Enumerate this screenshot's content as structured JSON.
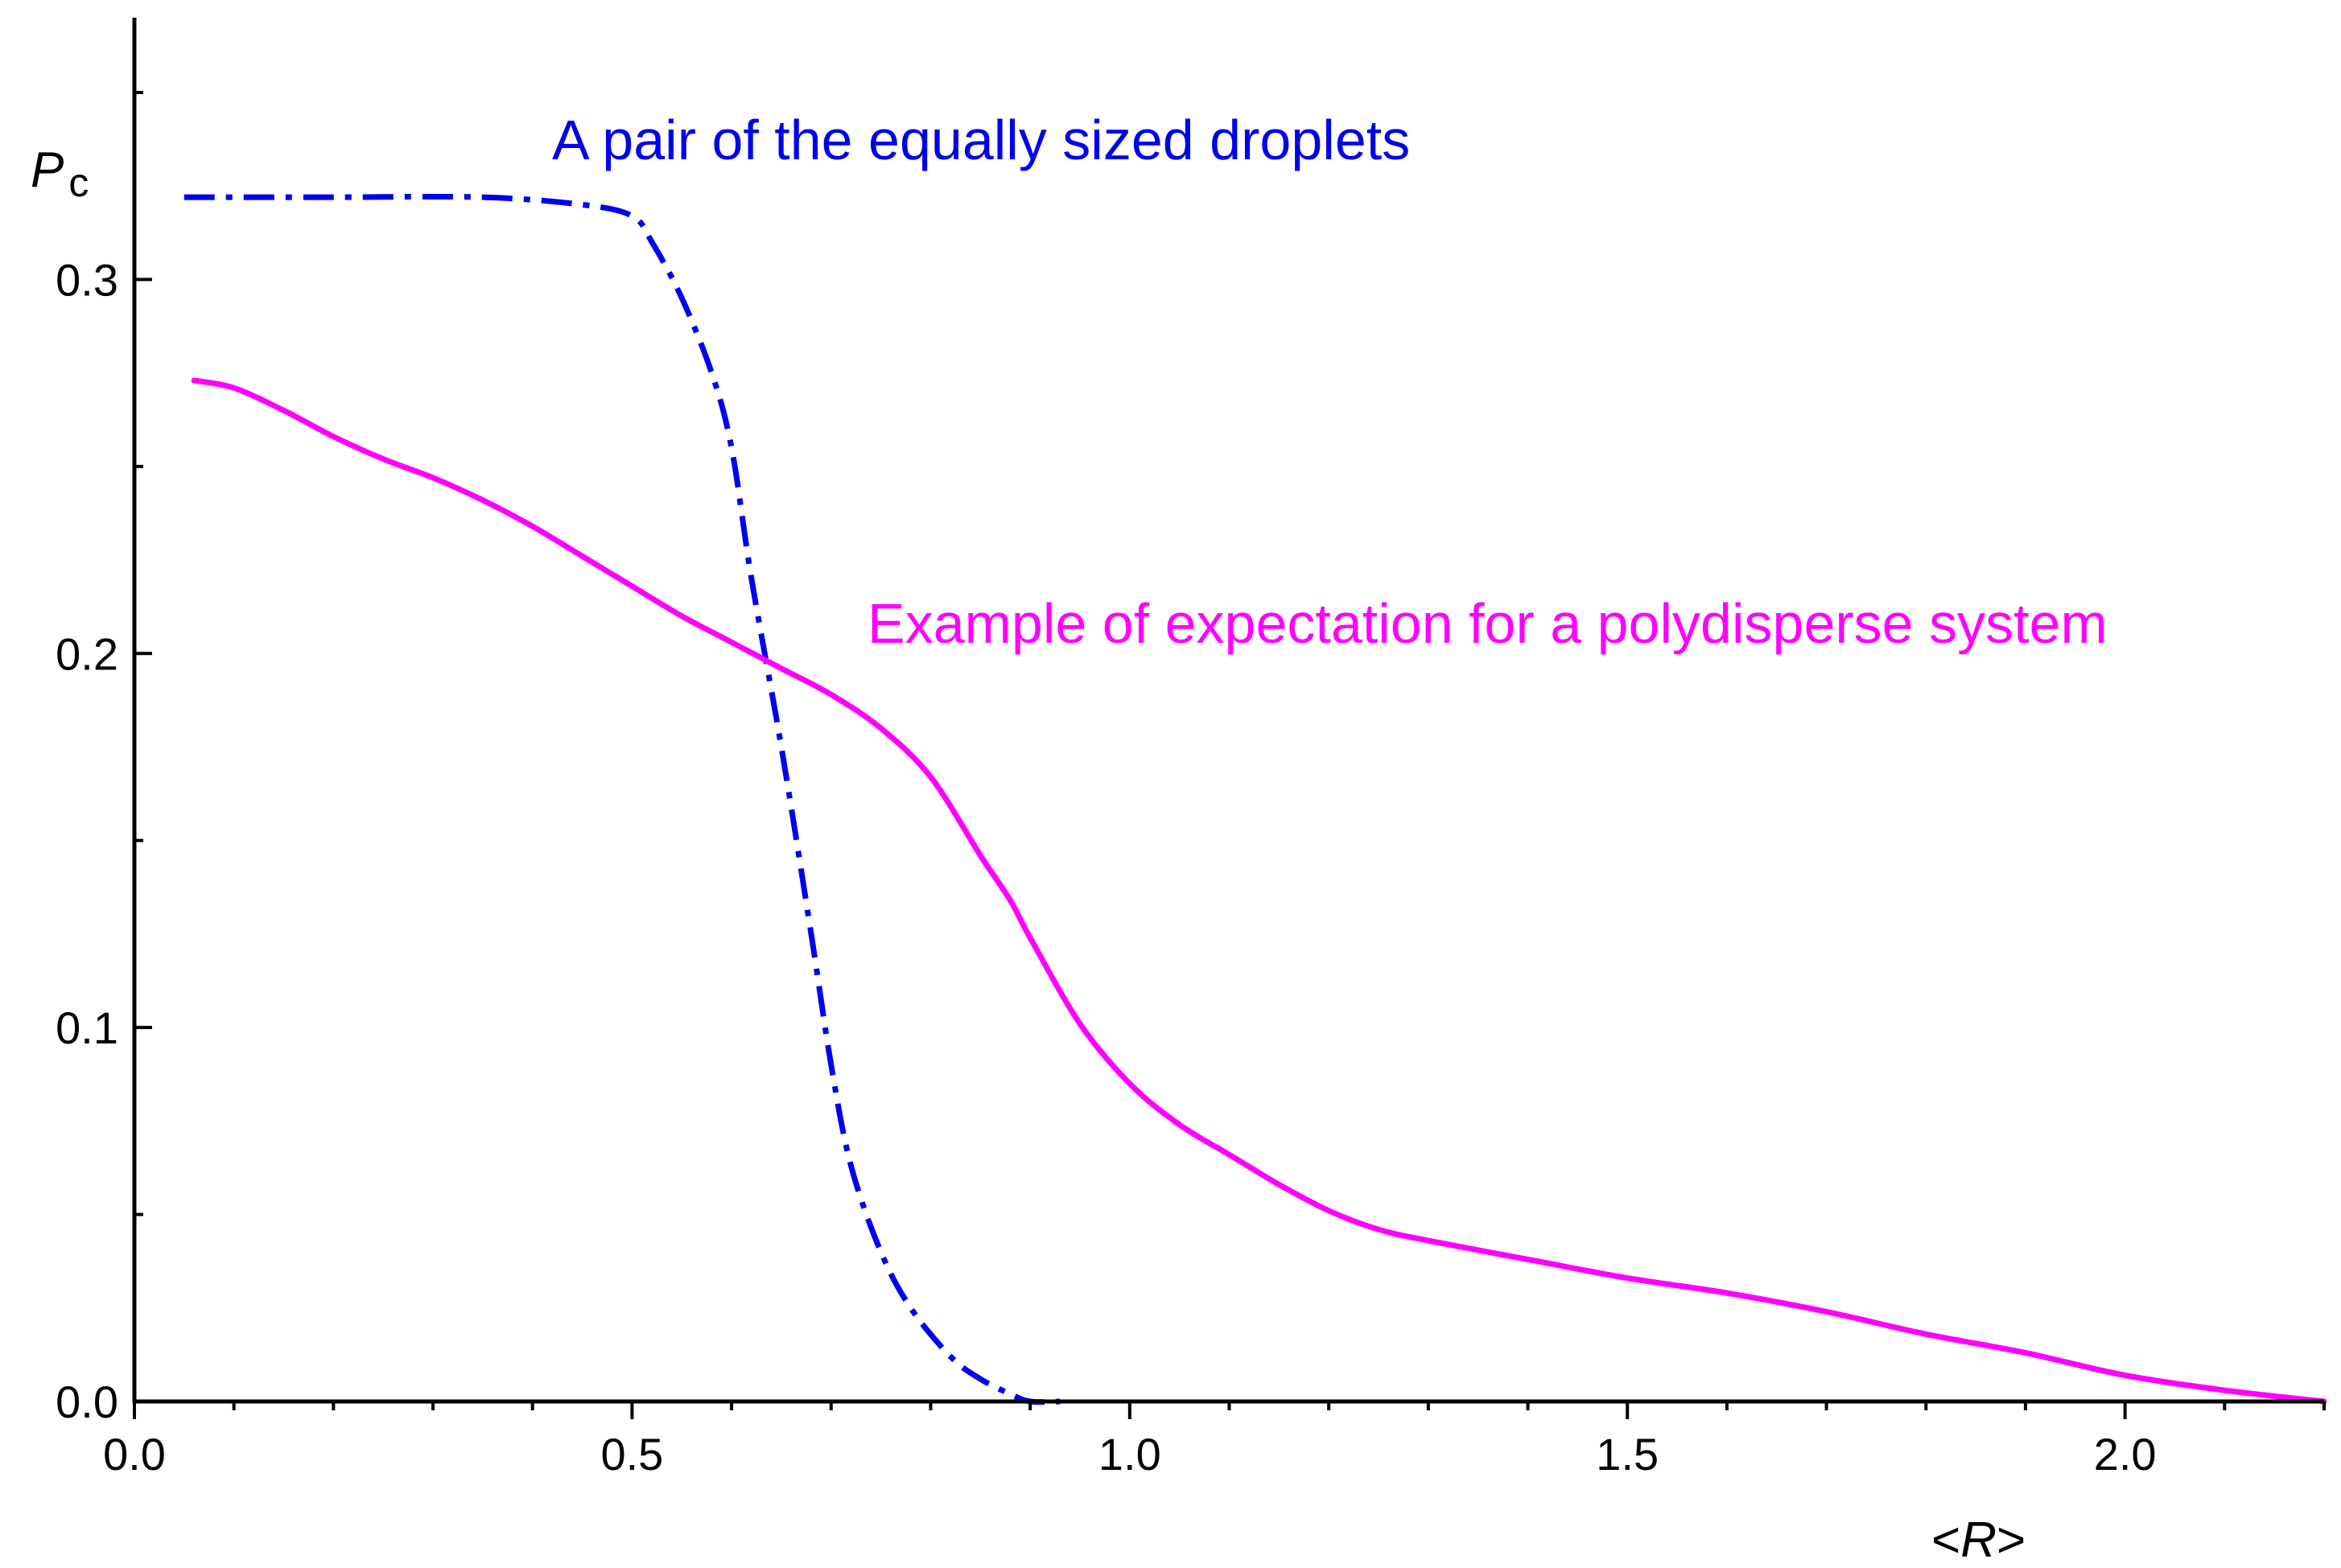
{
  "chart_data": {
    "type": "line",
    "title": "",
    "xlabel": {
      "prefix": "<",
      "var": "R",
      "suffix": ">"
    },
    "ylabel": {
      "var": "P",
      "sub": "c"
    },
    "xlim": [
      0.0,
      2.2
    ],
    "ylim": [
      0.0,
      0.37
    ],
    "x_ticks": [
      0.0,
      0.5,
      1.0,
      1.5,
      2.0
    ],
    "x_tick_labels": [
      "0.0",
      "0.5",
      "1.0",
      "1.5",
      "2.0"
    ],
    "x_minor_step": 0.1,
    "y_ticks": [
      0.0,
      0.1,
      0.2,
      0.3
    ],
    "y_tick_labels": [
      "0.0",
      "0.1",
      "0.2",
      "0.3"
    ],
    "y_minor_step": 0.05,
    "grid": false,
    "legend": "none",
    "series": [
      {
        "label": "A pair of the equally sized droplets",
        "color": "#0000ee",
        "style": "dash-dot",
        "x": [
          0.05,
          0.2,
          0.35,
          0.45,
          0.5,
          0.52,
          0.55,
          0.58,
          0.6,
          0.62,
          0.65,
          0.68,
          0.7,
          0.72,
          0.75,
          0.78,
          0.82,
          0.85,
          0.88,
          0.9,
          0.93
        ],
        "y": [
          0.322,
          0.322,
          0.322,
          0.32,
          0.317,
          0.31,
          0.295,
          0.275,
          0.255,
          0.22,
          0.175,
          0.125,
          0.09,
          0.063,
          0.04,
          0.025,
          0.012,
          0.006,
          0.002,
          0.0,
          0.0
        ]
      },
      {
        "label": "Example of expectation for a polydisperse system",
        "color": "#ff00ff",
        "style": "solid",
        "x": [
          0.06,
          0.1,
          0.15,
          0.2,
          0.25,
          0.3,
          0.35,
          0.4,
          0.45,
          0.5,
          0.55,
          0.6,
          0.65,
          0.7,
          0.75,
          0.8,
          0.85,
          0.88,
          0.9,
          0.95,
          1.0,
          1.05,
          1.1,
          1.15,
          1.2,
          1.25,
          1.3,
          1.4,
          1.5,
          1.6,
          1.7,
          1.8,
          1.9,
          2.0,
          2.1,
          2.2
        ],
        "y": [
          0.273,
          0.271,
          0.265,
          0.258,
          0.252,
          0.247,
          0.241,
          0.234,
          0.226,
          0.218,
          0.21,
          0.203,
          0.196,
          0.189,
          0.18,
          0.167,
          0.146,
          0.134,
          0.124,
          0.101,
          0.085,
          0.074,
          0.066,
          0.058,
          0.051,
          0.046,
          0.043,
          0.038,
          0.033,
          0.029,
          0.024,
          0.018,
          0.013,
          0.007,
          0.003,
          0.0
        ]
      }
    ],
    "annotations": [
      {
        "text": "A pair of the equally sized droplets",
        "color": "#0000ee"
      },
      {
        "text": "Example of expectation for a polydisperse system",
        "color": "#ff00ff"
      }
    ]
  }
}
